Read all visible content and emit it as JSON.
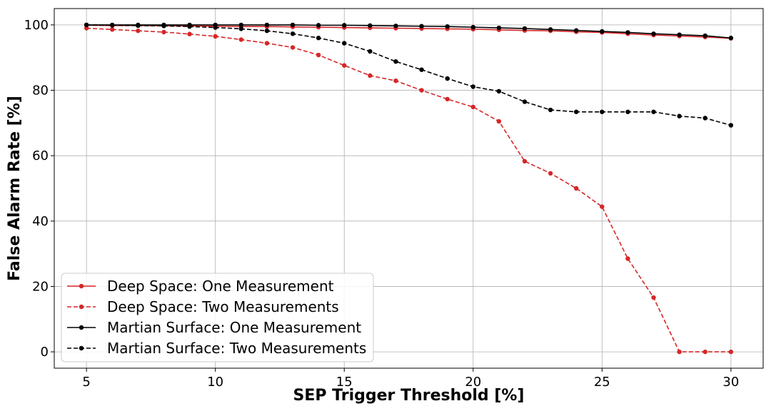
{
  "chart_data": {
    "type": "line",
    "title": "",
    "xlabel": "SEP Trigger Threshold [%]",
    "ylabel": "False Alarm Rate [%]",
    "xlim": [
      3.75,
      31.25
    ],
    "ylim": [
      -5,
      105
    ],
    "xticks": [
      5,
      10,
      15,
      20,
      25,
      30
    ],
    "yticks": [
      0,
      20,
      40,
      60,
      80,
      100
    ],
    "grid": true,
    "legend_position": "lower-left",
    "x": [
      5,
      6,
      7,
      8,
      9,
      10,
      11,
      12,
      13,
      14,
      15,
      16,
      17,
      18,
      19,
      20,
      21,
      22,
      23,
      24,
      25,
      26,
      27,
      28,
      29,
      30
    ],
    "series": [
      {
        "name": "Deep Space: One Measurement",
        "color": "#d62728",
        "linestyle": "solid",
        "values": [
          99.9,
          99.8,
          99.8,
          99.7,
          99.7,
          99.6,
          99.5,
          99.5,
          99.4,
          99.3,
          99.2,
          99.1,
          99.0,
          98.9,
          98.8,
          98.7,
          98.5,
          98.3,
          98.2,
          97.9,
          97.7,
          97.3,
          96.9,
          96.6,
          96.3,
          95.9
        ]
      },
      {
        "name": "Deep Space: Two Measurements",
        "color": "#d62728",
        "linestyle": "dashed",
        "values": [
          99.0,
          98.6,
          98.2,
          97.8,
          97.2,
          96.5,
          95.5,
          94.4,
          93.1,
          90.8,
          87.6,
          84.5,
          82.9,
          80.0,
          77.3,
          74.9,
          70.5,
          58.3,
          54.6,
          50.0,
          44.4,
          28.5,
          16.6,
          0,
          0,
          0
        ]
      },
      {
        "name": "Martian Surface: One Measurement",
        "color": "#000000",
        "linestyle": "solid",
        "values": [
          100,
          100,
          100,
          100,
          100,
          100,
          100,
          100,
          100,
          99.9,
          99.9,
          99.8,
          99.7,
          99.6,
          99.5,
          99.3,
          99.1,
          98.9,
          98.6,
          98.3,
          98.0,
          97.7,
          97.3,
          97.0,
          96.7,
          96.0
        ]
      },
      {
        "name": "Martian Surface: Two Measurements",
        "color": "#000000",
        "linestyle": "dashed",
        "values": [
          100,
          99.9,
          99.8,
          99.7,
          99.5,
          99.2,
          98.8,
          98.2,
          97.3,
          96.0,
          94.4,
          91.9,
          88.8,
          86.3,
          83.6,
          81.1,
          79.7,
          76.5,
          74.0,
          73.4,
          73.4,
          73.4,
          73.4,
          72.1,
          71.5,
          69.3
        ]
      }
    ]
  }
}
